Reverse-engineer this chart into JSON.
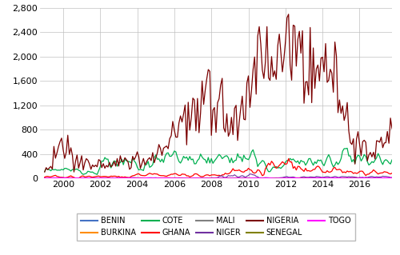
{
  "title": "",
  "ylabel": "",
  "xlabel": "",
  "ylim": [
    0,
    2800
  ],
  "yticks": [
    0,
    400,
    800,
    1200,
    1600,
    2000,
    2400,
    2800
  ],
  "xlim_left": 1998.75,
  "xlim_right": 2017.75,
  "xticks": [
    2000,
    2002,
    2004,
    2006,
    2008,
    2010,
    2012,
    2014,
    2016
  ],
  "n_points": 228,
  "start_year": 1999.0,
  "end_year": 2017.917,
  "series": {
    "BENIN": {
      "color": "#4472C4",
      "lw": 0.8
    },
    "BURKINA": {
      "color": "#FF8C00",
      "lw": 0.8
    },
    "COTE": {
      "color": "#00B050",
      "lw": 0.9
    },
    "GHANA": {
      "color": "#FF0000",
      "lw": 0.9
    },
    "MALI": {
      "color": "#808080",
      "lw": 0.8
    },
    "NIGER": {
      "color": "#7030A0",
      "lw": 0.8
    },
    "NIGERIA": {
      "color": "#7B0000",
      "lw": 0.9
    },
    "SENEGAL": {
      "color": "#808000",
      "lw": 0.8
    },
    "TOGO": {
      "color": "#FF00FF",
      "lw": 1.2
    }
  },
  "legend_order": [
    "BENIN",
    "BURKINA",
    "COTE",
    "GHANA",
    "MALI",
    "NIGER",
    "NIGERIA",
    "SENEGAL",
    "TOGO"
  ],
  "background_color": "#FFFFFF",
  "grid": true,
  "grid_color": "#C0C0C0"
}
